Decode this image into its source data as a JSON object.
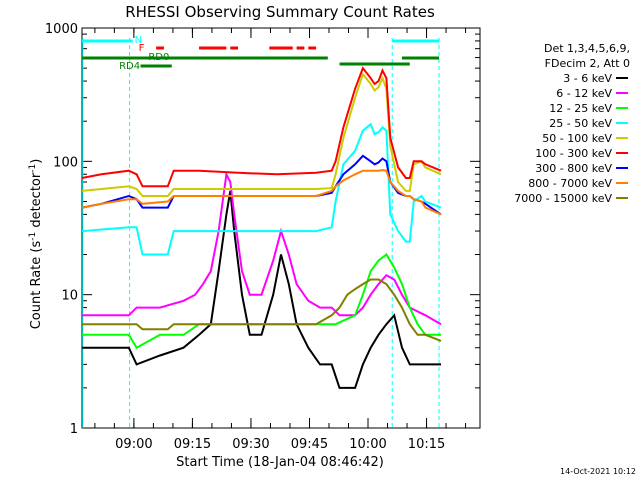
{
  "chart_data": {
    "type": "line",
    "title": "RHESSI Observing Summary Count Rates",
    "xlabel": "Start Time (18-Jan-04 08:46:42)",
    "ylabel_main": "Count Rate (s",
    "ylabel_sup1": "-1",
    "ylabel_mid": " detector",
    "ylabel_sup2": "-1",
    "ylabel_end": ")",
    "y_scale": "log",
    "ylim": [
      1,
      1000
    ],
    "xlim_min": [
      0,
      102
    ],
    "y_ticks": [
      {
        "value": 1000,
        "label": "1000"
      },
      {
        "value": 100,
        "label": "100"
      },
      {
        "value": 10,
        "label": "10"
      },
      {
        "value": 1,
        "label": "1"
      }
    ],
    "x_ticks": [
      {
        "value": 13.3,
        "label": "09:00"
      },
      {
        "value": 28.3,
        "label": "09:15"
      },
      {
        "value": 43.3,
        "label": "09:30"
      },
      {
        "value": 58.3,
        "label": "09:45"
      },
      {
        "value": 73.3,
        "label": "10:00"
      },
      {
        "value": 88.3,
        "label": "10:15"
      }
    ],
    "legend": {
      "header": [
        "Det 1,3,4,5,6,9,",
        "FDecim 2, Att 0"
      ],
      "position": "right"
    },
    "series": [
      {
        "name": "3 - 6 keV",
        "color": "#000000",
        "points": [
          [
            0,
            4
          ],
          [
            12,
            4
          ],
          [
            14,
            3
          ],
          [
            20,
            3.5
          ],
          [
            26,
            4
          ],
          [
            30,
            5
          ],
          [
            33,
            6
          ],
          [
            35,
            15
          ],
          [
            37,
            40
          ],
          [
            38,
            60
          ],
          [
            39,
            30
          ],
          [
            41,
            10
          ],
          [
            43,
            5
          ],
          [
            46,
            5
          ],
          [
            49,
            10
          ],
          [
            51,
            20
          ],
          [
            53,
            12
          ],
          [
            55,
            6
          ],
          [
            58,
            4
          ],
          [
            61,
            3
          ],
          [
            64,
            3
          ],
          [
            66,
            2
          ],
          [
            70,
            2
          ],
          [
            72,
            3
          ],
          [
            74,
            4
          ],
          [
            76,
            5
          ],
          [
            78,
            6
          ],
          [
            80,
            7
          ],
          [
            82,
            4
          ],
          [
            84,
            3
          ],
          [
            88,
            3
          ],
          [
            92,
            3
          ]
        ]
      },
      {
        "name": "6 - 12 keV",
        "color": "#ff00ff",
        "points": [
          [
            0,
            7
          ],
          [
            12,
            7
          ],
          [
            14,
            8
          ],
          [
            20,
            8
          ],
          [
            26,
            9
          ],
          [
            29,
            10
          ],
          [
            31,
            12
          ],
          [
            33,
            15
          ],
          [
            35,
            30
          ],
          [
            37,
            80
          ],
          [
            38,
            70
          ],
          [
            39,
            40
          ],
          [
            41,
            15
          ],
          [
            43,
            10
          ],
          [
            46,
            10
          ],
          [
            49,
            18
          ],
          [
            51,
            30
          ],
          [
            53,
            20
          ],
          [
            55,
            12
          ],
          [
            58,
            9
          ],
          [
            61,
            8
          ],
          [
            64,
            8
          ],
          [
            66,
            7
          ],
          [
            70,
            7
          ],
          [
            72,
            8
          ],
          [
            74,
            10
          ],
          [
            76,
            12
          ],
          [
            78,
            14
          ],
          [
            80,
            13
          ],
          [
            82,
            10
          ],
          [
            84,
            8
          ],
          [
            88,
            7
          ],
          [
            92,
            6
          ]
        ]
      },
      {
        "name": "12 - 25 keV",
        "color": "#00ff00",
        "points": [
          [
            0,
            5
          ],
          [
            12,
            5
          ],
          [
            14,
            4
          ],
          [
            20,
            5
          ],
          [
            26,
            5
          ],
          [
            30,
            6
          ],
          [
            35,
            6
          ],
          [
            40,
            6
          ],
          [
            45,
            6
          ],
          [
            50,
            6
          ],
          [
            55,
            6
          ],
          [
            60,
            6
          ],
          [
            65,
            6
          ],
          [
            70,
            7
          ],
          [
            72,
            10
          ],
          [
            74,
            15
          ],
          [
            76,
            18
          ],
          [
            78,
            20
          ],
          [
            80,
            16
          ],
          [
            82,
            12
          ],
          [
            84,
            8
          ],
          [
            86,
            6
          ],
          [
            88,
            5
          ],
          [
            92,
            5
          ]
        ]
      },
      {
        "name": "25 - 50 keV",
        "color": "#00ffff",
        "points": [
          [
            0,
            30
          ],
          [
            12,
            32
          ],
          [
            14,
            32
          ],
          [
            15.5,
            20
          ],
          [
            22,
            20
          ],
          [
            23.5,
            30
          ],
          [
            30,
            30
          ],
          [
            40,
            30
          ],
          [
            50,
            30
          ],
          [
            60,
            30
          ],
          [
            64,
            32
          ],
          [
            65,
            50
          ],
          [
            67,
            95
          ],
          [
            70,
            120
          ],
          [
            72,
            170
          ],
          [
            74,
            190
          ],
          [
            75,
            160
          ],
          [
            76,
            165
          ],
          [
            77,
            180
          ],
          [
            78,
            170
          ],
          [
            79,
            40
          ],
          [
            81,
            30
          ],
          [
            83,
            25
          ],
          [
            84,
            25
          ],
          [
            85,
            50
          ],
          [
            87,
            55
          ],
          [
            88,
            50
          ],
          [
            92,
            45
          ]
        ]
      },
      {
        "name": "50 - 100 keV",
        "color": "#cccc00",
        "points": [
          [
            0,
            60
          ],
          [
            5,
            62
          ],
          [
            12,
            65
          ],
          [
            14,
            62
          ],
          [
            15.5,
            55
          ],
          [
            22,
            55
          ],
          [
            23.5,
            62
          ],
          [
            30,
            62
          ],
          [
            40,
            62
          ],
          [
            50,
            62
          ],
          [
            60,
            62
          ],
          [
            64,
            63
          ],
          [
            65,
            80
          ],
          [
            67,
            150
          ],
          [
            70,
            300
          ],
          [
            72,
            450
          ],
          [
            74,
            380
          ],
          [
            75,
            340
          ],
          [
            76,
            360
          ],
          [
            77,
            420
          ],
          [
            78,
            350
          ],
          [
            79,
            130
          ],
          [
            81,
            70
          ],
          [
            83,
            60
          ],
          [
            84,
            60
          ],
          [
            85,
            95
          ],
          [
            87,
            100
          ],
          [
            88,
            90
          ],
          [
            92,
            80
          ]
        ]
      },
      {
        "name": "100 - 300 keV",
        "color": "#ff0000",
        "points": [
          [
            0,
            75
          ],
          [
            5,
            80
          ],
          [
            12,
            85
          ],
          [
            14,
            80
          ],
          [
            15.5,
            65
          ],
          [
            22,
            65
          ],
          [
            23.5,
            85
          ],
          [
            30,
            85
          ],
          [
            40,
            82
          ],
          [
            50,
            80
          ],
          [
            60,
            82
          ],
          [
            64,
            85
          ],
          [
            65,
            100
          ],
          [
            67,
            180
          ],
          [
            70,
            350
          ],
          [
            72,
            500
          ],
          [
            74,
            420
          ],
          [
            75,
            380
          ],
          [
            76,
            400
          ],
          [
            77,
            480
          ],
          [
            78,
            420
          ],
          [
            79,
            150
          ],
          [
            81,
            90
          ],
          [
            83,
            75
          ],
          [
            84,
            75
          ],
          [
            85,
            100
          ],
          [
            87,
            100
          ],
          [
            88,
            95
          ],
          [
            92,
            85
          ]
        ]
      },
      {
        "name": "300 - 800 keV",
        "color": "#0000ff",
        "points": [
          [
            0,
            45
          ],
          [
            5,
            48
          ],
          [
            12,
            55
          ],
          [
            14,
            52
          ],
          [
            15.5,
            45
          ],
          [
            22,
            45
          ],
          [
            23.5,
            55
          ],
          [
            30,
            55
          ],
          [
            40,
            55
          ],
          [
            50,
            55
          ],
          [
            60,
            55
          ],
          [
            64,
            58
          ],
          [
            65,
            65
          ],
          [
            67,
            80
          ],
          [
            70,
            95
          ],
          [
            72,
            110
          ],
          [
            74,
            100
          ],
          [
            75,
            95
          ],
          [
            76,
            98
          ],
          [
            77,
            105
          ],
          [
            78,
            100
          ],
          [
            79,
            70
          ],
          [
            81,
            58
          ],
          [
            83,
            55
          ],
          [
            84,
            55
          ],
          [
            85,
            52
          ],
          [
            87,
            50
          ],
          [
            88,
            48
          ],
          [
            92,
            40
          ]
        ]
      },
      {
        "name": "800 - 7000 keV",
        "color": "#ff8000",
        "points": [
          [
            0,
            45
          ],
          [
            5,
            48
          ],
          [
            12,
            52
          ],
          [
            14,
            52
          ],
          [
            15.5,
            48
          ],
          [
            22,
            50
          ],
          [
            23.5,
            55
          ],
          [
            30,
            55
          ],
          [
            40,
            55
          ],
          [
            50,
            55
          ],
          [
            60,
            55
          ],
          [
            64,
            60
          ],
          [
            65,
            65
          ],
          [
            67,
            72
          ],
          [
            70,
            80
          ],
          [
            72,
            85
          ],
          [
            74,
            85
          ],
          [
            75,
            85
          ],
          [
            76,
            85
          ],
          [
            77,
            86
          ],
          [
            78,
            85
          ],
          [
            79,
            70
          ],
          [
            81,
            60
          ],
          [
            83,
            55
          ],
          [
            84,
            55
          ],
          [
            85,
            52
          ],
          [
            87,
            50
          ],
          [
            88,
            45
          ],
          [
            92,
            40
          ]
        ]
      },
      {
        "name": "7000 - 15000 keV",
        "color": "#808000",
        "points": [
          [
            0,
            6
          ],
          [
            5,
            6
          ],
          [
            12,
            6
          ],
          [
            14,
            6
          ],
          [
            15.5,
            5.5
          ],
          [
            22,
            5.5
          ],
          [
            23.5,
            6
          ],
          [
            30,
            6
          ],
          [
            40,
            6
          ],
          [
            50,
            6
          ],
          [
            60,
            6
          ],
          [
            64,
            7
          ],
          [
            66,
            8
          ],
          [
            68,
            10
          ],
          [
            70,
            11
          ],
          [
            72,
            12
          ],
          [
            74,
            13
          ],
          [
            76,
            13
          ],
          [
            78,
            12
          ],
          [
            80,
            10
          ],
          [
            82,
            8
          ],
          [
            84,
            6
          ],
          [
            86,
            5
          ],
          [
            88,
            5
          ],
          [
            92,
            4.5
          ]
        ]
      }
    ],
    "annotations": [
      {
        "text": "N",
        "color": "#00ffff"
      },
      {
        "text": "F",
        "color": "#ff0000"
      },
      {
        "text": "RD0",
        "color": "#008000"
      },
      {
        "text": "RD4",
        "color": "#008000"
      }
    ],
    "footer_date": "14-Oct-2021 10:12"
  }
}
